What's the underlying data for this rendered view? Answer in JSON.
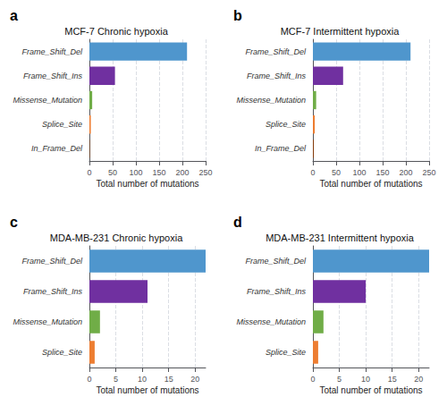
{
  "chart_data": [
    {
      "type": "bar",
      "orientation": "horizontal",
      "title": "MCF-7 Chronic hypoxia",
      "annotations": [
        "a"
      ],
      "xlabel": "Total number of mutations",
      "categories": [
        "Frame_Shift_Del",
        "Frame_Shift_Ins",
        "Missense_Mutation",
        "Splice_Site",
        "In_Frame_Del"
      ],
      "values": [
        210,
        55,
        6,
        3,
        1
      ],
      "colors": [
        "#4f96cd",
        "#7030a0",
        "#70ad47",
        "#ed7d31",
        "#843c0c"
      ],
      "xlim": [
        0,
        250
      ],
      "xticks": [
        0,
        50,
        100,
        150,
        200,
        250
      ],
      "grid": true
    },
    {
      "type": "bar",
      "orientation": "horizontal",
      "title": "MCF-7 Intermittent hypoxia",
      "annotations": [
        "b"
      ],
      "xlabel": "Total number of mutations",
      "categories": [
        "Frame_Shift_Del",
        "Frame_Shift_Ins",
        "Missense_Mutation",
        "Splice_Site",
        "In_Frame_Del"
      ],
      "values": [
        210,
        65,
        7,
        4,
        2
      ],
      "colors": [
        "#4f96cd",
        "#7030a0",
        "#70ad47",
        "#ed7d31",
        "#843c0c"
      ],
      "xlim": [
        0,
        250
      ],
      "xticks": [
        0,
        50,
        100,
        150,
        200,
        250
      ],
      "grid": true
    },
    {
      "type": "bar",
      "orientation": "horizontal",
      "title": "MDA-MB-231 Chronic hypoxia",
      "annotations": [
        "c"
      ],
      "xlabel": "Total number of mutations",
      "categories": [
        "Frame_Shift_Del",
        "Frame_Shift_Ins",
        "Missense_Mutation",
        "Splice_Site"
      ],
      "values": [
        22,
        11,
        2,
        1
      ],
      "colors": [
        "#4f96cd",
        "#7030a0",
        "#70ad47",
        "#ed7d31"
      ],
      "xlim": [
        0,
        22
      ],
      "xticks": [
        0,
        5,
        10,
        15,
        20
      ],
      "grid": true
    },
    {
      "type": "bar",
      "orientation": "horizontal",
      "title": "MDA-MB-231 Intermittent hypoxia",
      "annotations": [
        "d"
      ],
      "xlabel": "Total number of mutations",
      "categories": [
        "Frame_Shift_Del",
        "Frame_Shift_Ins",
        "Missense_Mutation",
        "Splice_Site"
      ],
      "values": [
        22,
        10,
        2,
        1
      ],
      "colors": [
        "#4f96cd",
        "#7030a0",
        "#70ad47",
        "#ed7d31"
      ],
      "xlim": [
        0,
        22
      ],
      "xticks": [
        0,
        5,
        10,
        15,
        20
      ],
      "grid": true
    }
  ]
}
